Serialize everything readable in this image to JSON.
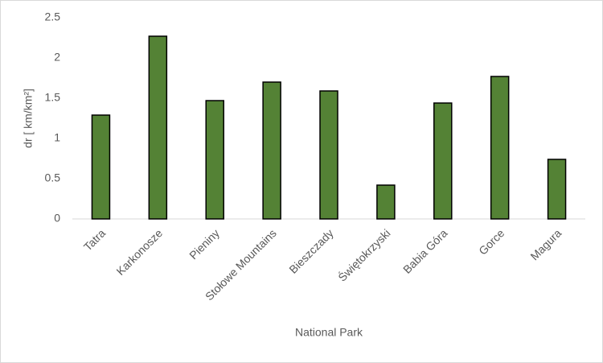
{
  "chart_data": {
    "type": "bar",
    "x_label": "National Park",
    "y_label": "dr [ km/km²]",
    "categories": [
      "Tatra",
      "Karkonosze",
      "Pieniny",
      "Stołowe Mountains",
      "Bieszczady",
      "Świętokrzyski",
      "Babia Góra",
      "Gorce",
      "Magura"
    ],
    "values": [
      1.29,
      2.27,
      1.47,
      1.7,
      1.59,
      0.42,
      1.44,
      1.77,
      0.74
    ],
    "color": "#548235",
    "ylim": [
      0,
      2.5
    ],
    "yticks": [
      0,
      0.5,
      1,
      1.5,
      2,
      2.5
    ],
    "grid": false
  }
}
